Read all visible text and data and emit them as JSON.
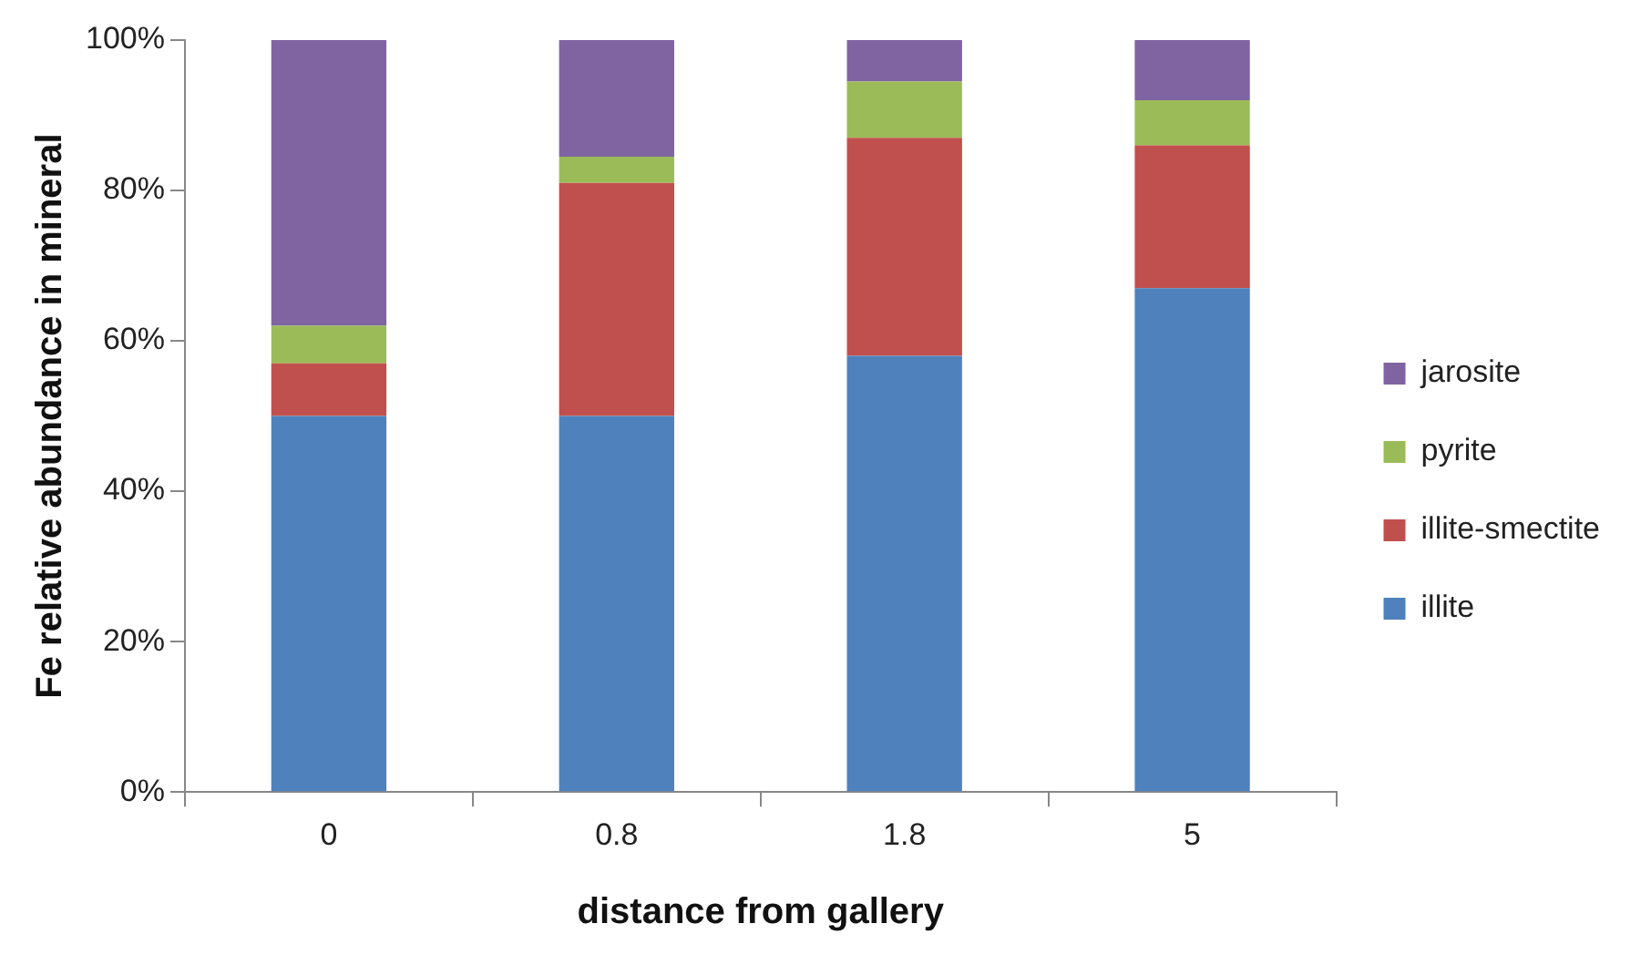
{
  "chart_data": {
    "type": "bar",
    "stacked": true,
    "xlabel": "distance from gallery",
    "ylabel": "Fe relative abundance in mineral",
    "categories": [
      "0",
      "0.8",
      "1.8",
      "5"
    ],
    "series": [
      {
        "name": "illite",
        "color": "#4f81bd",
        "values": [
          50,
          50,
          58,
          67
        ]
      },
      {
        "name": "illite-smectite",
        "color": "#c0504d",
        "values": [
          7,
          31,
          29,
          19
        ]
      },
      {
        "name": "pyrite",
        "color": "#9bbb59",
        "values": [
          5,
          3.5,
          7.5,
          6
        ]
      },
      {
        "name": "jarosite",
        "color": "#8064a2",
        "values": [
          38,
          15.5,
          5.5,
          8
        ]
      }
    ],
    "ylim": [
      0,
      100
    ],
    "yticks": [
      {
        "value": 0,
        "label": "0%"
      },
      {
        "value": 20,
        "label": "20%"
      },
      {
        "value": 40,
        "label": "40%"
      },
      {
        "value": 60,
        "label": "60%"
      },
      {
        "value": 80,
        "label": "80%"
      },
      {
        "value": 100,
        "label": "100%"
      }
    ],
    "grid": false,
    "legend": "right"
  }
}
